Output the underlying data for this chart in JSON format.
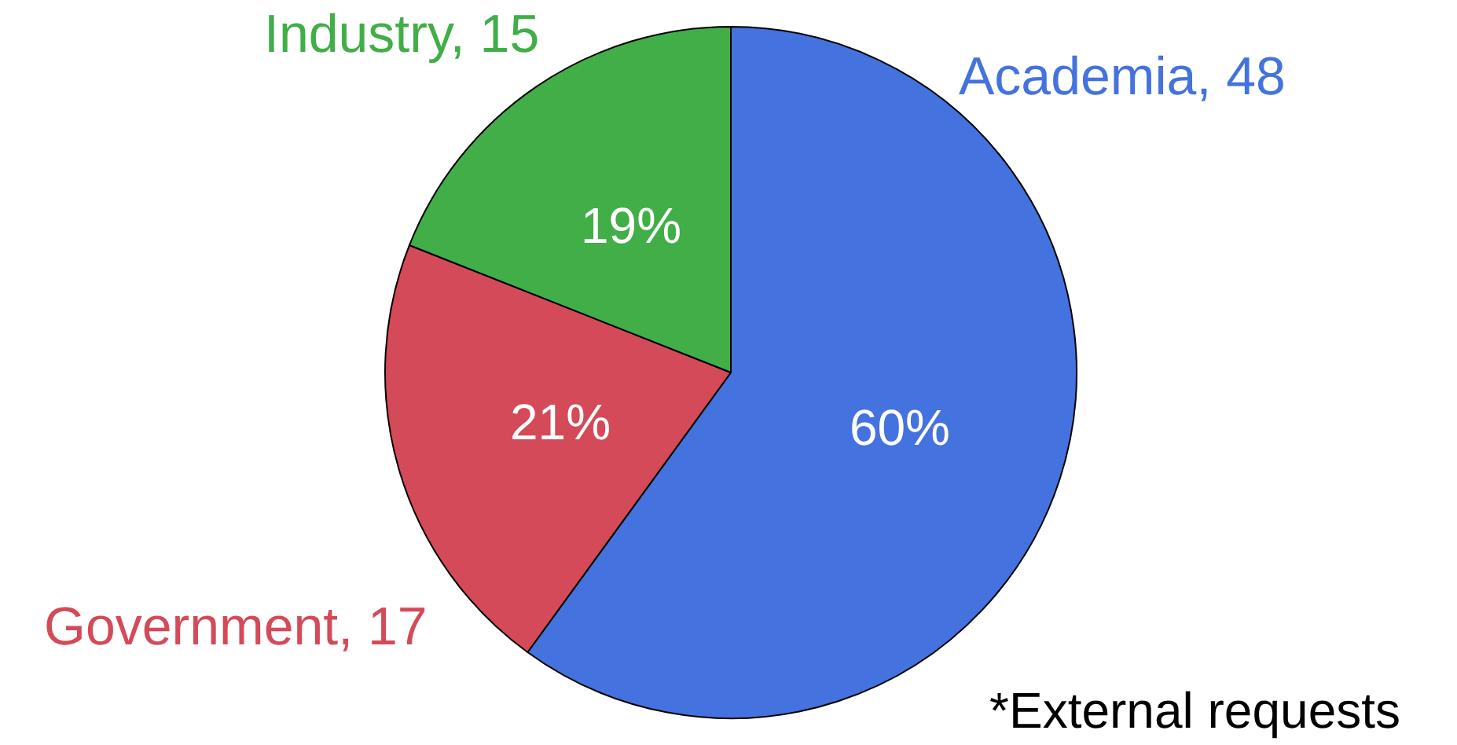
{
  "chart_data": {
    "type": "pie",
    "categories": [
      "Academia, 48",
      "Government, 17",
      "Industry, 15"
    ],
    "values": [
      60,
      21,
      19
    ],
    "colors": [
      "#4472de",
      "#d44a58",
      "#41ae48"
    ],
    "value_labels": [
      "60%",
      "21%",
      "19%"
    ],
    "annotations": [
      "*External requests"
    ]
  }
}
